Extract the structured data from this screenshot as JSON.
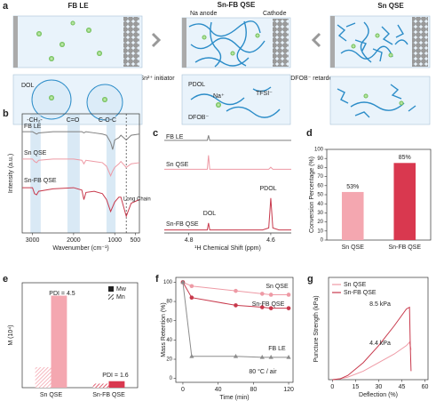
{
  "schematic": {
    "panel_label": "a",
    "titles": [
      "FB LE",
      "Sn-FB QSE",
      "Sn QSE"
    ],
    "labels": {
      "na_anode": "Na anode",
      "cathode": "Cathode",
      "initiator": "Sn²⁺ initiator",
      "retarder": "DFOB⁻ retarder",
      "dol": "DOL",
      "pdol": "PDOL",
      "na": "Na⁺",
      "tfsi": "TFSI⁻",
      "dfob": "DFOB⁻"
    }
  },
  "chart_data": [
    {
      "panel_label": "b",
      "type": "line",
      "ylabel": "Intensity (a.u.)",
      "xlabel": "Wavenumber (cm⁻¹)",
      "frame": "box",
      "x": [
        3250,
        3000,
        2950,
        2900,
        2850,
        2500,
        2000,
        1800,
        1750,
        1700,
        1500,
        1300,
        1200,
        1100,
        1050,
        1000,
        900,
        850,
        720,
        600,
        400
      ],
      "xlim": [
        3250,
        400
      ],
      "xticks": [
        3000,
        2000,
        1000,
        500
      ],
      "ylim": [
        0,
        100
      ],
      "series": [
        {
          "name": "FB LE",
          "color": "#7f7f7f",
          "values": [
            85,
            85,
            84,
            83,
            84,
            85,
            85,
            85,
            84,
            85,
            84,
            83,
            82,
            76,
            70,
            78,
            80,
            82,
            78,
            82,
            83
          ]
        },
        {
          "name": "Sn QSE",
          "color": "#ee9aa5",
          "values": [
            62,
            62,
            60,
            59,
            61,
            62,
            62,
            61,
            58,
            61,
            60,
            59,
            56,
            48,
            52,
            55,
            58,
            60,
            55,
            58,
            59
          ]
        },
        {
          "name": "Sn-FB QSE",
          "color": "#c8394c",
          "values": [
            38,
            38,
            33,
            32,
            35,
            37,
            38,
            36,
            28,
            34,
            35,
            33,
            28,
            18,
            22,
            26,
            30,
            30,
            14,
            25,
            28
          ]
        }
      ],
      "bands": [
        [
          3050,
          2800
        ],
        [
          2150,
          1850
        ],
        [
          1200,
          980
        ]
      ],
      "vline": 720,
      "annotations": [
        "-CH₂-",
        "C=O",
        "C-O-C",
        "Long Chain"
      ]
    },
    {
      "panel_label": "c",
      "type": "line",
      "xlabel": "¹H Chemical Shift (ppm)",
      "frame": "bottom",
      "x": [
        4.86,
        4.76,
        4.755,
        4.752,
        4.749,
        4.745,
        4.62,
        4.605,
        4.6,
        4.595,
        4.58,
        4.55
      ],
      "xlim": [
        4.86,
        4.55
      ],
      "xticks": [
        4.8,
        4.6
      ],
      "ylim": [
        0,
        100
      ],
      "series": [
        {
          "name": "FB LE",
          "color": "#7f7f7f",
          "values": [
            93,
            93,
            93,
            98,
            93,
            93,
            93,
            93,
            93,
            93,
            93,
            93
          ]
        },
        {
          "name": "Sn QSE",
          "color": "#ee9aa5",
          "values": [
            64,
            64,
            64,
            78,
            64,
            64,
            64,
            64,
            66,
            64,
            64,
            64
          ]
        },
        {
          "name": "Sn-FB QSE",
          "color": "#c8394c",
          "values": [
            3,
            3,
            3,
            10,
            3,
            3,
            3,
            5,
            35,
            5,
            3,
            3
          ]
        }
      ],
      "annotations": [
        "DOL",
        "PDOL"
      ]
    },
    {
      "panel_label": "d",
      "type": "bar",
      "ylabel": "Conversion Percentage (%)",
      "frame": "box",
      "categories": [
        "Sn QSE",
        "Sn-FB QSE"
      ],
      "values": [
        53,
        85
      ],
      "value_labels": [
        "53%",
        "85%"
      ],
      "colors": [
        "#f4a7b0",
        "#d9384f"
      ],
      "ylim": [
        0,
        100
      ],
      "yticks": [
        0,
        10,
        20,
        30,
        40,
        50,
        60,
        70,
        80,
        90,
        100
      ]
    },
    {
      "panel_label": "e",
      "type": "bar",
      "ylabel": "M (10⁴)",
      "frame": "box",
      "categories": [
        "Sn QSE",
        "Sn-FB QSE"
      ],
      "colors": [
        "#f4a7b0",
        "#d9384f"
      ],
      "ylim": [
        0,
        6.5
      ],
      "series": [
        {
          "name": "Mw",
          "pattern": "solid",
          "values": [
            5.7,
            0.4
          ]
        },
        {
          "name": "Mn",
          "pattern": "hatch",
          "values": [
            1.27,
            0.25
          ]
        }
      ],
      "legend": "upper right",
      "annotations": [
        "PDI = 4.5",
        "PDI = 1.6"
      ]
    },
    {
      "panel_label": "f",
      "type": "line",
      "xlabel": "Time (min)",
      "ylabel": "Mass Retention (%)",
      "frame": "box",
      "x": [
        0,
        10,
        60,
        90,
        100,
        120
      ],
      "xlim": [
        -8,
        125
      ],
      "xticks": [
        0,
        40,
        80,
        120
      ],
      "ylim": [
        -4,
        105
      ],
      "yticks": [
        0,
        20,
        40,
        60,
        80,
        100
      ],
      "series": [
        {
          "name": "Sn QSE",
          "color": "#ee9aa5",
          "marker": "circle",
          "values": [
            100,
            96,
            91,
            88,
            87,
            87
          ]
        },
        {
          "name": "Sn-FB QSE",
          "color": "#c8394c",
          "marker": "circle",
          "values": [
            100,
            84,
            76,
            74,
            73,
            73
          ]
        },
        {
          "name": "FB LE",
          "color": "#8c8c8c",
          "marker": "triangle",
          "values": [
            100,
            23,
            23,
            22,
            22,
            22
          ]
        }
      ],
      "annotations": [
        "80 °C / air"
      ]
    },
    {
      "panel_label": "g",
      "type": "line",
      "xlabel": "Deflection (%)",
      "ylabel": "Puncture Strength (kPa)",
      "frame": "box",
      "xlim": [
        -2.5,
        62
      ],
      "xticks": [
        0,
        15,
        30,
        45,
        60
      ],
      "ylim": [
        0,
        12
      ],
      "legend": "upper left",
      "series": [
        {
          "name": "Sn QSE",
          "color": "#ee9aa5",
          "x": [
            0,
            5,
            10,
            20,
            30,
            40,
            48,
            50,
            51
          ],
          "values": [
            0,
            0.1,
            0.3,
            1,
            2,
            3,
            4,
            4.4,
            3.5
          ]
        },
        {
          "name": "Sn-FB QSE",
          "color": "#c8394c",
          "x": [
            0,
            5,
            10,
            20,
            30,
            40,
            48,
            50,
            50.5,
            51
          ],
          "values": [
            0,
            0.1,
            0.5,
            2,
            4,
            6.3,
            8.3,
            8.5,
            4,
            1
          ]
        }
      ],
      "annotations": [
        "8.5 kPa",
        "4.4 kPa"
      ]
    }
  ]
}
